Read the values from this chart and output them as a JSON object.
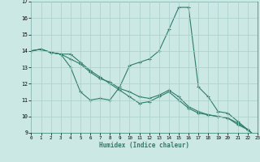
{
  "xlabel": "Humidex (Indice chaleur)",
  "x_values": [
    0,
    1,
    2,
    3,
    4,
    5,
    6,
    7,
    8,
    9,
    10,
    11,
    12,
    13,
    14,
    15,
    16,
    17,
    18,
    19,
    20,
    21,
    22,
    23
  ],
  "line1": [
    14.0,
    14.1,
    13.9,
    13.8,
    13.0,
    11.5,
    11.0,
    11.1,
    11.0,
    11.8,
    13.1,
    13.3,
    13.5,
    14.0,
    15.3,
    16.65,
    16.65,
    11.8,
    11.2,
    10.3,
    10.2,
    9.7,
    9.2,
    8.7
  ],
  "line2": [
    14.0,
    14.1,
    13.9,
    13.8,
    13.8,
    13.3,
    12.8,
    12.4,
    12.0,
    11.6,
    11.2,
    10.8,
    10.9,
    11.2,
    11.5,
    11.0,
    10.5,
    10.2,
    10.1,
    10.0,
    9.9,
    9.5,
    9.2,
    8.7
  ],
  "line3": [
    14.0,
    14.1,
    13.9,
    13.8,
    13.5,
    13.2,
    12.7,
    12.3,
    12.1,
    11.7,
    11.5,
    11.2,
    11.1,
    11.3,
    11.6,
    11.2,
    10.6,
    10.3,
    10.1,
    10.0,
    9.9,
    9.6,
    9.2,
    8.7
  ],
  "line_color": "#2d7d6b",
  "bg_color": "#cce8e4",
  "grid_color": "#aacfcc",
  "ylim": [
    9,
    17
  ],
  "xlim": [
    0,
    23
  ],
  "yticks": [
    9,
    10,
    11,
    12,
    13,
    14,
    15,
    16,
    17
  ],
  "xticks": [
    0,
    1,
    2,
    3,
    4,
    5,
    6,
    7,
    8,
    9,
    10,
    11,
    12,
    13,
    14,
    15,
    16,
    17,
    18,
    19,
    20,
    21,
    22,
    23
  ]
}
